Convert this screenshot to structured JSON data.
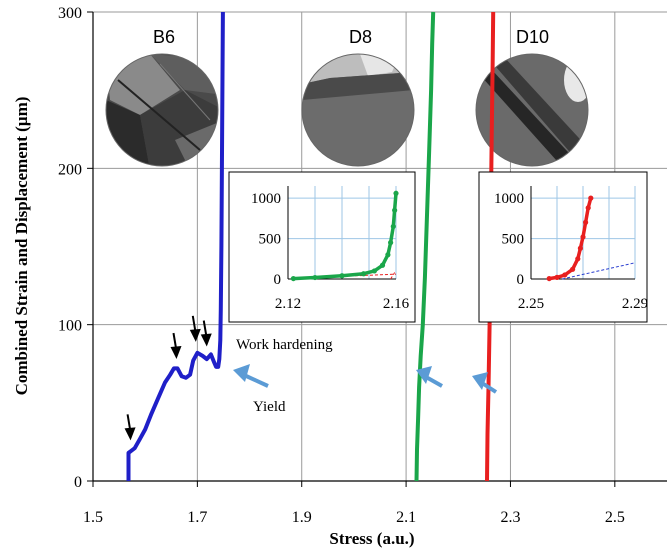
{
  "chart_data": {
    "type": "line",
    "xlabel": "Stress (a.u.)",
    "ylabel": "Combined Strain and Displacement (µm)",
    "xlim": [
      1.5,
      2.6
    ],
    "ylim": [
      0,
      300
    ],
    "x_ticks": [
      "1.5",
      "1.7",
      "1.9",
      "2.1",
      "2.3",
      "2.5"
    ],
    "y_ticks": [
      "0",
      "100",
      "200",
      "300"
    ],
    "grid": true,
    "series": [
      {
        "name": "B6",
        "color": "#1f1fc8",
        "points": [
          [
            1.568,
            0
          ],
          [
            1.568,
            18
          ],
          [
            1.572,
            19
          ],
          [
            1.58,
            21
          ],
          [
            1.59,
            27
          ],
          [
            1.6,
            33
          ],
          [
            1.612,
            43
          ],
          [
            1.625,
            53
          ],
          [
            1.638,
            63
          ],
          [
            1.648,
            68
          ],
          [
            1.655,
            72
          ],
          [
            1.662,
            72
          ],
          [
            1.67,
            67
          ],
          [
            1.678,
            66
          ],
          [
            1.686,
            68
          ],
          [
            1.692,
            77
          ],
          [
            1.7,
            82
          ],
          [
            1.71,
            80
          ],
          [
            1.718,
            78
          ],
          [
            1.726,
            81
          ],
          [
            1.732,
            76
          ],
          [
            1.736,
            73
          ],
          [
            1.74,
            73
          ],
          [
            1.742,
            78
          ],
          [
            1.744,
            90
          ],
          [
            1.745,
            110
          ],
          [
            1.746,
            150
          ],
          [
            1.747,
            200
          ],
          [
            1.748,
            250
          ],
          [
            1.749,
            300
          ]
        ]
      },
      {
        "name": "D8",
        "color": "#1aa64a",
        "points": [
          [
            2.12,
            0
          ],
          [
            2.121,
            20
          ],
          [
            2.123,
            40
          ],
          [
            2.125,
            60
          ],
          [
            2.128,
            80
          ],
          [
            2.132,
            100
          ],
          [
            2.136,
            130
          ],
          [
            2.14,
            170
          ],
          [
            2.144,
            210
          ],
          [
            2.148,
            250
          ],
          [
            2.15,
            280
          ],
          [
            2.152,
            300
          ]
        ]
      },
      {
        "name": "D10",
        "color": "#e81f1f",
        "points": [
          [
            2.255,
            0
          ],
          [
            2.256,
            30
          ],
          [
            2.258,
            60
          ],
          [
            2.26,
            100
          ],
          [
            2.262,
            160
          ],
          [
            2.264,
            220
          ],
          [
            2.266,
            270
          ],
          [
            2.267,
            300
          ]
        ]
      }
    ],
    "annotations": {
      "work_hardening": "Work hardening",
      "yield": "Yield",
      "arrows": [
        [
          1.572,
          26
        ],
        [
          1.66,
          78
        ],
        [
          1.697,
          89
        ],
        [
          1.718,
          86
        ]
      ]
    },
    "images": [
      {
        "label": "B6"
      },
      {
        "label": "D8"
      },
      {
        "label": "D10"
      }
    ],
    "insets": [
      {
        "xlim": [
          2.12,
          2.16
        ],
        "ylim": [
          0,
          1150
        ],
        "x_ticks": [
          "2.12",
          "2.16"
        ],
        "y_ticks": [
          "0",
          "500",
          "1000"
        ],
        "color": "#1aa64a",
        "points": [
          [
            2.122,
            5
          ],
          [
            2.13,
            18
          ],
          [
            2.14,
            40
          ],
          [
            2.148,
            65
          ],
          [
            2.152,
            100
          ],
          [
            2.155,
            170
          ],
          [
            2.157,
            300
          ],
          [
            2.158,
            450
          ],
          [
            2.159,
            650
          ],
          [
            2.1595,
            850
          ],
          [
            2.16,
            1060
          ]
        ]
      },
      {
        "xlim": [
          2.25,
          2.29
        ],
        "ylim": [
          0,
          1150
        ],
        "x_ticks": [
          "2.25",
          "2.29"
        ],
        "y_ticks": [
          "0",
          "500",
          "1000"
        ],
        "color": "#e81f1f",
        "points": [
          [
            2.257,
            5
          ],
          [
            2.26,
            20
          ],
          [
            2.263,
            50
          ],
          [
            2.266,
            120
          ],
          [
            2.268,
            250
          ],
          [
            2.269,
            380
          ],
          [
            2.27,
            520
          ],
          [
            2.271,
            700
          ],
          [
            2.272,
            880
          ],
          [
            2.273,
            1000
          ]
        ]
      }
    ]
  }
}
